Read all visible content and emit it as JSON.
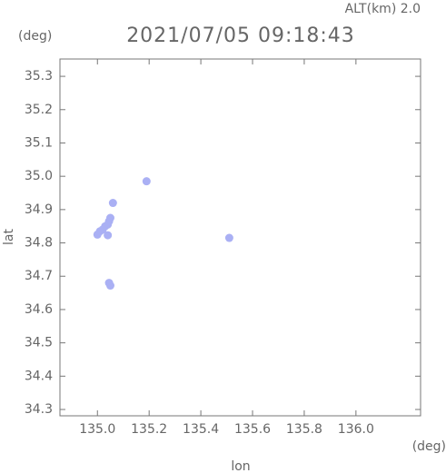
{
  "chart_data": {
    "type": "scatter",
    "title": "2021/07/05 09:18:43",
    "annotation": "ALT(km) 2.0",
    "y_unit": "(deg)",
    "x_unit": "(deg)",
    "xlabel": "lon",
    "ylabel": "lat",
    "color": "#aab0f4",
    "x": [
      135.0,
      135.01,
      135.02,
      135.03,
      135.04,
      135.045,
      135.05,
      135.06,
      135.19,
      135.045,
      135.05,
      135.04,
      135.51
    ],
    "y": [
      34.825,
      34.835,
      34.84,
      34.85,
      34.855,
      34.865,
      34.875,
      34.92,
      34.985,
      34.68,
      34.672,
      34.823,
      34.815
    ],
    "xlim": [
      134.855,
      136.25
    ],
    "ylim": [
      34.281,
      35.352
    ],
    "xticks": [
      {
        "value": 135,
        "label": "135.0"
      },
      135.2,
      135.4,
      135.6,
      135.8,
      {
        "value": 136,
        "label": "136.0"
      }
    ],
    "yticks": [
      34.3,
      34.4,
      34.5,
      34.6,
      34.7,
      34.8,
      34.9,
      {
        "value": 35,
        "label": "35.0"
      },
      35.1,
      35.2,
      35.3
    ]
  }
}
